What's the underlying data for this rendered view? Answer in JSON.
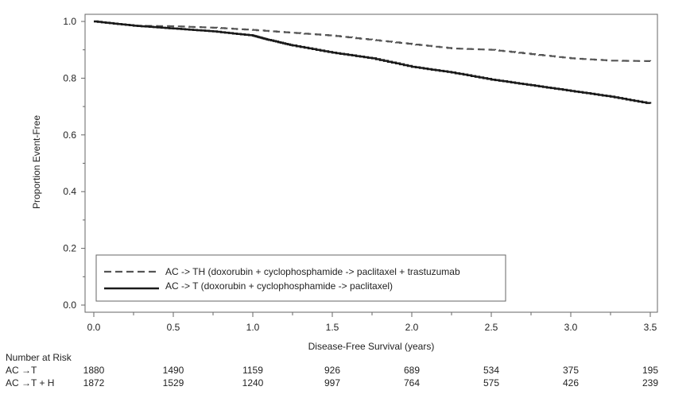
{
  "chart_data": {
    "type": "line",
    "xlabel": "Disease-Free Survival (years)",
    "ylabel": "Proportion Event-Free",
    "xlim": [
      0,
      3.5
    ],
    "ylim": [
      0,
      1.0
    ],
    "x_ticks": [
      "0.0",
      "0.5",
      "1.0",
      "1.5",
      "2.0",
      "2.5",
      "3.0",
      "3.5"
    ],
    "y_ticks": [
      "0.0",
      "0.2",
      "0.4",
      "0.6",
      "0.8",
      "1.0"
    ],
    "grid": false,
    "legend_placement": "bottom-left",
    "series": [
      {
        "name": "AC -> TH (doxorubin + cyclophosphamide -> paclitaxel + trastuzumab",
        "style": "dashed",
        "color": "#555555",
        "x": [
          0,
          0.25,
          0.5,
          0.75,
          1.0,
          1.25,
          1.5,
          1.75,
          2.0,
          2.25,
          2.5,
          2.75,
          3.0,
          3.25,
          3.5
        ],
        "y": [
          1.0,
          0.985,
          0.983,
          0.978,
          0.97,
          0.96,
          0.95,
          0.935,
          0.92,
          0.905,
          0.9,
          0.885,
          0.87,
          0.862,
          0.86
        ]
      },
      {
        "name": "AC -> T (doxorubin + cyclophosphamide -> paclitaxel)",
        "style": "solid",
        "color": "#1a1a1a",
        "x": [
          0,
          0.25,
          0.5,
          0.75,
          1.0,
          1.1,
          1.25,
          1.5,
          1.75,
          2.0,
          2.25,
          2.5,
          2.75,
          3.0,
          3.25,
          3.5
        ],
        "y": [
          1.0,
          0.985,
          0.975,
          0.965,
          0.95,
          0.935,
          0.915,
          0.89,
          0.87,
          0.84,
          0.82,
          0.795,
          0.775,
          0.755,
          0.735,
          0.71
        ]
      }
    ],
    "risk_table": {
      "title": "Number at Risk",
      "rows": [
        {
          "label": "AC →T",
          "values": [
            "1880",
            "1490",
            "1159",
            "926",
            "689",
            "534",
            "375",
            "195"
          ]
        },
        {
          "label": "AC →T + H",
          "values": [
            "1872",
            "1529",
            "1240",
            "997",
            "764",
            "575",
            "426",
            "239"
          ]
        }
      ]
    }
  }
}
